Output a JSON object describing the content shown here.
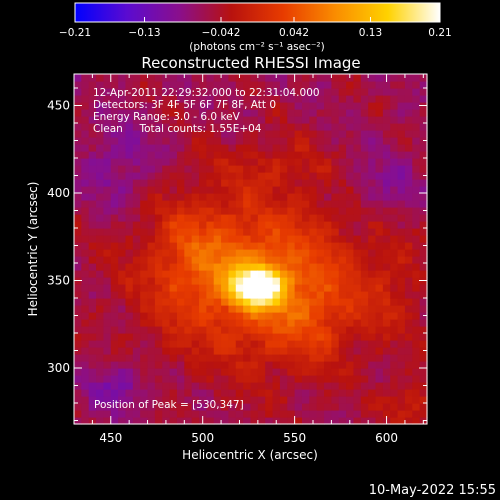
{
  "chart_data": {
    "type": "heatmap",
    "title": "Reconstructed RHESSI Image",
    "xlabel": "Heliocentric X (arcsec)",
    "ylabel": "Heliocentric Y (arcsec)",
    "xlim": [
      430,
      622
    ],
    "ylim": [
      268,
      468
    ],
    "x_ticks": [
      450,
      500,
      550,
      600
    ],
    "y_ticks": [
      300,
      350,
      400,
      450
    ],
    "colorbar": {
      "min": -0.21,
      "max": 0.21,
      "tick_values": [
        -0.21,
        -0.13,
        -0.042,
        0.042,
        0.13,
        0.21
      ],
      "tick_labels": [
        "−0.21",
        "−0.13",
        "−0.042",
        "0.042",
        "0.13",
        "0.21"
      ],
      "units": "(photons cm⁻² s⁻¹ asec⁻²)",
      "colors": [
        "#0000ff",
        "#5b0bd0",
        "#8a0f8c",
        "#b8120e",
        "#e83c00",
        "#fa8d00",
        "#ffd200",
        "#ffffff"
      ]
    },
    "annotations": [
      "12-Apr-2011 22:29:32.000 to 22:31:04.000",
      "Detectors: 3F 4F 5F 6F 7F 8F, Att 0",
      "Energy Range: 3.0 - 6.0 keV",
      "Clean     Total counts: 1.55E+04"
    ],
    "peak_label": "Position of Peak = [530,347]",
    "peak": {
      "x": 530,
      "y": 347,
      "value": 0.21
    },
    "source_blobs": [
      {
        "x": 530,
        "y": 347,
        "sx": 10,
        "sy": 8,
        "amp": 0.22
      },
      {
        "x": 528,
        "y": 352,
        "sx": 40,
        "sy": 34,
        "amp": 0.11
      },
      {
        "x": 495,
        "y": 365,
        "sx": 18,
        "sy": 22,
        "amp": 0.04
      },
      {
        "x": 560,
        "y": 330,
        "sx": 18,
        "sy": 20,
        "amp": 0.04
      },
      {
        "x": 605,
        "y": 345,
        "sx": 12,
        "sy": 20,
        "amp": 0.03
      },
      {
        "x": 612,
        "y": 280,
        "sx": 10,
        "sy": 10,
        "amp": 0.05
      },
      {
        "x": 540,
        "y": 418,
        "sx": 20,
        "sy": 10,
        "amp": 0.03
      },
      {
        "x": 455,
        "y": 290,
        "sx": 12,
        "sy": 10,
        "amp": -0.05
      },
      {
        "x": 455,
        "y": 415,
        "sx": 14,
        "sy": 18,
        "amp": -0.04
      },
      {
        "x": 600,
        "y": 405,
        "sx": 16,
        "sy": 14,
        "amp": -0.03
      }
    ],
    "background": -0.06
  },
  "footer": {
    "date": "10-May-2022 15:55"
  }
}
